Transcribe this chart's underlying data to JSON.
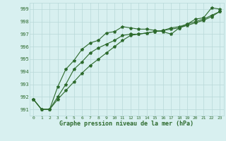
{
  "hours": [
    0,
    1,
    2,
    3,
    4,
    5,
    6,
    7,
    8,
    9,
    10,
    11,
    12,
    13,
    14,
    15,
    16,
    17,
    18,
    19,
    20,
    21,
    22,
    23
  ],
  "line1": [
    991.8,
    991.0,
    991.0,
    992.8,
    994.2,
    994.9,
    995.8,
    996.3,
    996.5,
    997.1,
    997.2,
    997.6,
    997.5,
    997.4,
    997.4,
    997.3,
    997.2,
    997.0,
    997.5,
    997.8,
    998.2,
    998.3,
    999.1,
    999.0
  ],
  "line2": [
    991.8,
    991.0,
    991.0,
    992.0,
    993.0,
    994.2,
    994.8,
    995.5,
    995.9,
    996.2,
    996.5,
    996.9,
    997.0,
    997.0,
    997.1,
    997.2,
    997.3,
    997.5,
    997.6,
    997.8,
    998.0,
    998.2,
    998.5,
    998.8
  ],
  "line3": [
    991.8,
    991.0,
    991.0,
    991.8,
    992.5,
    993.2,
    993.9,
    994.5,
    995.0,
    995.5,
    996.0,
    996.5,
    996.9,
    997.0,
    997.1,
    997.2,
    997.3,
    997.4,
    997.5,
    997.7,
    997.9,
    998.1,
    998.4,
    998.8
  ],
  "line_color": "#2d6a2d",
  "bg_color": "#d8f0f0",
  "grid_color": "#b8d8d8",
  "ylabel_ticks": [
    991,
    992,
    993,
    994,
    995,
    996,
    997,
    998,
    999
  ],
  "xlabel": "Graphe pression niveau de la mer (hPa)",
  "ylim": [
    990.5,
    999.5
  ],
  "xlim": [
    -0.5,
    23.5
  ],
  "figsize": [
    3.2,
    2.0
  ],
  "dpi": 100
}
